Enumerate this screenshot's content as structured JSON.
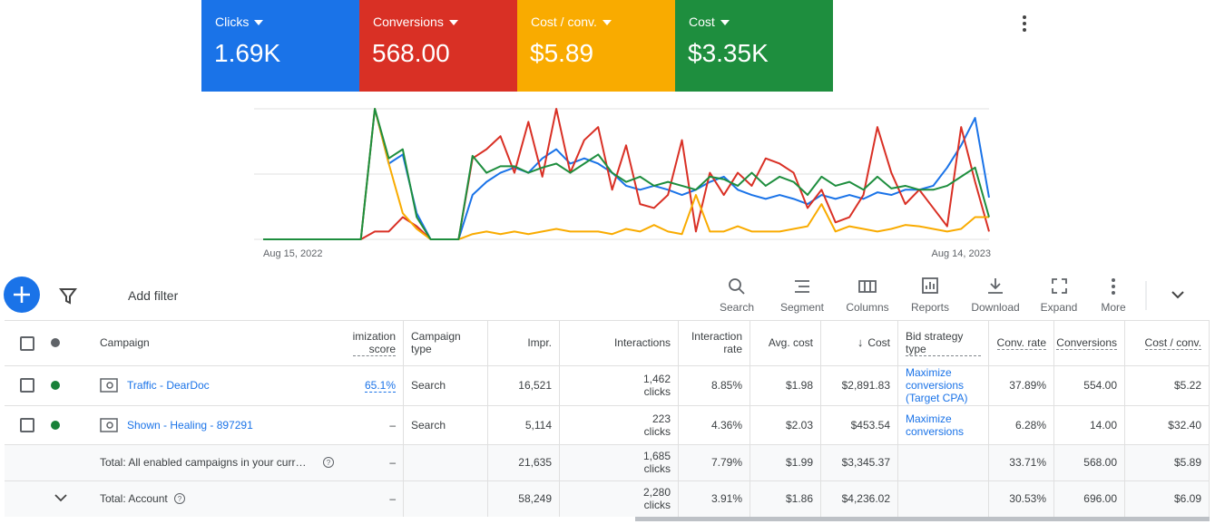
{
  "chart_data": {
    "type": "line",
    "categories": [
      "Aug 15, 2022",
      null,
      null,
      null,
      null,
      null,
      null,
      null,
      null,
      null,
      null,
      null,
      null,
      null,
      null,
      null,
      null,
      null,
      null,
      null,
      null,
      null,
      null,
      null,
      null,
      null,
      null,
      null,
      null,
      null,
      null,
      null,
      null,
      null,
      null,
      null,
      null,
      null,
      null,
      null,
      null,
      null,
      null,
      null,
      null,
      null,
      null,
      null,
      null,
      null,
      null,
      null,
      "Aug 14, 2023"
    ],
    "grid": true,
    "series": [
      {
        "name": "Clicks",
        "total": "1.69K",
        "color": "#1a73e8",
        "values": [
          0,
          0,
          0,
          0,
          0,
          0,
          0,
          0,
          100,
          58,
          65,
          20,
          0,
          0,
          0,
          34,
          44,
          51,
          55,
          51,
          62,
          69,
          58,
          62,
          58,
          51,
          41,
          38,
          41,
          38,
          34,
          38,
          44,
          48,
          38,
          34,
          31,
          34,
          31,
          27,
          34,
          31,
          34,
          31,
          36,
          34,
          38,
          38,
          41,
          55,
          72,
          93,
          32
        ]
      },
      {
        "name": "Conversions",
        "total": "568.00",
        "color": "#d93025",
        "values": [
          0,
          0,
          0,
          0,
          0,
          0,
          0,
          0,
          6,
          6,
          17,
          10,
          0,
          0,
          0,
          62,
          69,
          79,
          51,
          90,
          48,
          100,
          51,
          76,
          86,
          38,
          72,
          27,
          24,
          34,
          76,
          6,
          51,
          34,
          51,
          41,
          62,
          58,
          51,
          24,
          38,
          13,
          17,
          34,
          86,
          51,
          27,
          38,
          24,
          10,
          86,
          44,
          6
        ]
      },
      {
        "name": "Cost / conv.",
        "total": "$5.89",
        "color": "#f9ab00",
        "values": [
          0,
          0,
          0,
          0,
          0,
          0,
          0,
          0,
          100,
          58,
          20,
          8,
          0,
          0,
          0,
          4,
          6,
          4,
          6,
          4,
          6,
          8,
          6,
          6,
          6,
          4,
          8,
          6,
          11,
          6,
          4,
          34,
          6,
          6,
          10,
          6,
          6,
          6,
          8,
          10,
          27,
          6,
          10,
          8,
          6,
          8,
          11,
          10,
          8,
          6,
          8,
          17,
          17
        ]
      },
      {
        "name": "Cost",
        "total": "$3.35K",
        "color": "#1e8e3e",
        "values": [
          0,
          0,
          0,
          0,
          0,
          0,
          0,
          0,
          100,
          62,
          69,
          17,
          0,
          0,
          0,
          64,
          51,
          56,
          56,
          51,
          55,
          58,
          51,
          58,
          65,
          51,
          44,
          48,
          41,
          44,
          41,
          38,
          48,
          46,
          41,
          51,
          41,
          48,
          44,
          34,
          48,
          41,
          44,
          38,
          48,
          39,
          41,
          38,
          38,
          41,
          48,
          55,
          17
        ]
      }
    ]
  },
  "toolbar": {
    "filter": "Add filter",
    "buttons": [
      "Search",
      "Segment",
      "Columns",
      "Reports",
      "Download",
      "Expand",
      "More"
    ]
  },
  "table": {
    "columns": [
      "Campaign",
      "imization score",
      "Campaign type",
      "Impr.",
      "Interactions",
      "Interaction rate",
      "Avg. cost",
      "Cost",
      "Bid strategy type",
      "Conv. rate",
      "Conversions",
      "Cost / conv."
    ],
    "rows": [
      [
        "Traffic - DearDoc",
        "65.1%",
        "Search",
        "16,521",
        {
          "value": "1,462",
          "unit": "clicks"
        },
        "8.85%",
        "$1.98",
        "$2,891.83",
        "Maximize conversions (Target CPA)",
        "37.89%",
        "554.00",
        "$5.22"
      ],
      [
        "Shown - Healing - 897291",
        "–",
        "Search",
        "5,114",
        {
          "value": "223",
          "unit": "clicks"
        },
        "4.36%",
        "$2.03",
        "$453.54",
        "Maximize conversions",
        "6.28%",
        "14.00",
        "$32.40"
      ],
      [
        "Total: All enabled campaigns in your curr…",
        "–",
        null,
        "21,635",
        {
          "value": "1,685",
          "unit": "clicks"
        },
        "7.79%",
        "$1.99",
        "$3,345.37",
        null,
        "33.71%",
        "568.00",
        "$5.89"
      ],
      [
        "Total: Account",
        "–",
        null,
        "58,249",
        {
          "value": "2,280",
          "unit": "clicks"
        },
        "3.91%",
        "$1.86",
        "$4,236.02",
        null,
        "30.53%",
        "696.00",
        "$6.09"
      ]
    ]
  }
}
